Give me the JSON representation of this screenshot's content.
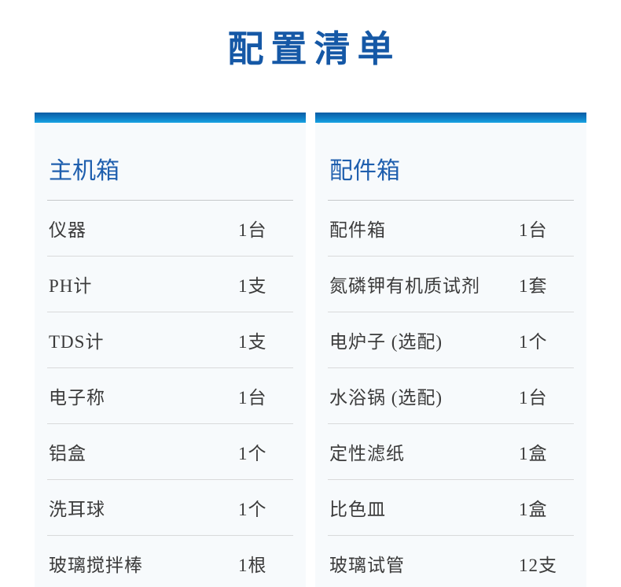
{
  "page": {
    "title": "配置清单"
  },
  "colors": {
    "title_blue": "#1558a6",
    "header_blue": "#1f5fae",
    "bar_gradient_top": "#0a5ca4",
    "bar_gradient_bottom": "#18a3e2",
    "panel_background": "#f7fafc",
    "divider_gray": "#d9dadb",
    "item_text": "#3b3b3b"
  },
  "boxes": [
    {
      "header": "主机箱",
      "items": [
        {
          "name": "仪器",
          "qty": "1台"
        },
        {
          "name": "PH计",
          "qty": "1支"
        },
        {
          "name": "TDS计",
          "qty": "1支"
        },
        {
          "name": "电子称",
          "qty": "1台"
        },
        {
          "name": "铝盒",
          "qty": "1个"
        },
        {
          "name": "洗耳球",
          "qty": "1个"
        },
        {
          "name": "玻璃搅拌棒",
          "qty": "1根"
        }
      ]
    },
    {
      "header": "配件箱",
      "items": [
        {
          "name": "配件箱",
          "qty": "1台"
        },
        {
          "name": "氮磷钾有机质试剂",
          "qty": "1套"
        },
        {
          "name": "电炉子 (选配)",
          "qty": "1个"
        },
        {
          "name": "水浴锅 (选配)",
          "qty": "1台"
        },
        {
          "name": "定性滤纸",
          "qty": "1盒"
        },
        {
          "name": "比色皿",
          "qty": "1盒"
        },
        {
          "name": "玻璃试管",
          "qty": "12支"
        }
      ]
    }
  ]
}
